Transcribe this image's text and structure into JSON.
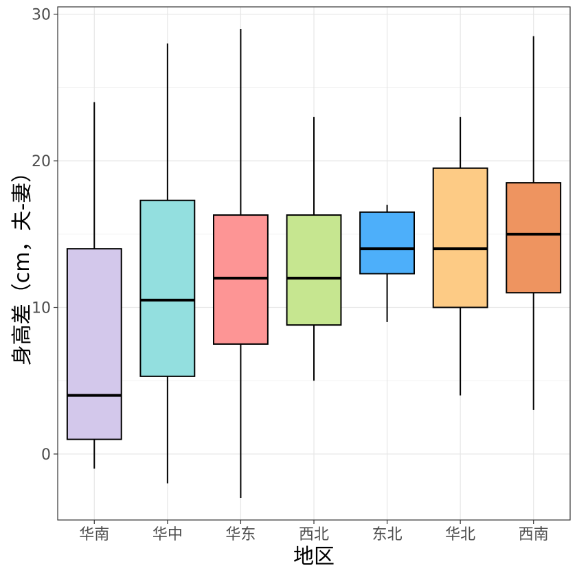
{
  "chart_data": {
    "type": "boxplot",
    "title": "",
    "xlabel": "地区",
    "ylabel": "身高差（cm，夫-妻）",
    "ylim": [
      -4.5,
      30.5
    ],
    "yticks": [
      0,
      10,
      20,
      30
    ],
    "y_tick_labels": [
      "0",
      "10",
      "20",
      "30"
    ],
    "grid": true,
    "categories": [
      "华南",
      "华中",
      "华东",
      "西北",
      "东北",
      "华北",
      "西南"
    ],
    "boxes": [
      {
        "category": "华南",
        "whisker_low": -1,
        "q1": 1,
        "median": 4,
        "q3": 14,
        "whisker_high": 24,
        "color": "#d3c8eb"
      },
      {
        "category": "华中",
        "whisker_low": -2,
        "q1": 5.3,
        "median": 10.5,
        "q3": 17.3,
        "whisker_high": 28,
        "color": "#93dfdf"
      },
      {
        "category": "华东",
        "whisker_low": -3,
        "q1": 7.5,
        "median": 12,
        "q3": 16.3,
        "whisker_high": 29,
        "color": "#fd9595"
      },
      {
        "category": "西北",
        "whisker_low": 5,
        "q1": 8.8,
        "median": 12,
        "q3": 16.3,
        "whisker_high": 23,
        "color": "#c6e690"
      },
      {
        "category": "东北",
        "whisker_low": 9,
        "q1": 12.3,
        "median": 14,
        "q3": 16.5,
        "whisker_high": 17,
        "color": "#4daffa"
      },
      {
        "category": "华北",
        "whisker_low": 4,
        "q1": 10,
        "median": 14,
        "q3": 19.5,
        "whisker_high": 23,
        "color": "#fdcb85"
      },
      {
        "category": "西南",
        "whisker_low": 3,
        "q1": 11,
        "median": 15,
        "q3": 18.5,
        "whisker_high": 28.5,
        "color": "#ee9460"
      }
    ]
  }
}
